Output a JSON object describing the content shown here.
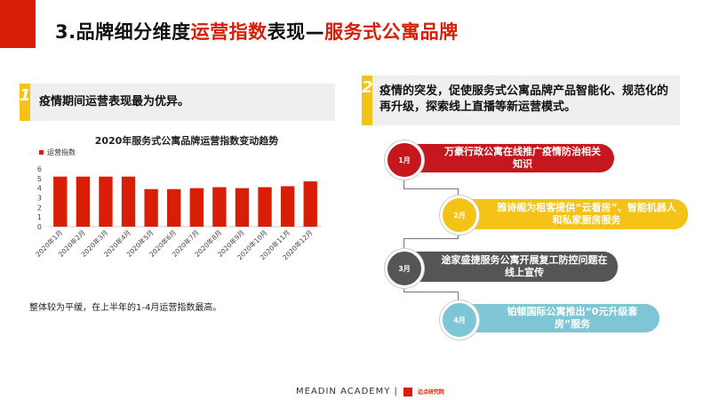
{
  "header": {
    "title_prefix": "3.品牌细分维度",
    "title_highlight1": "运营指数",
    "title_mid": "表现—",
    "title_highlight2": "服务式公寓品牌"
  },
  "left_panel": {
    "number": "1",
    "heading": "疫情期间运营表现最为优异。",
    "note": "整体较为平缓，在上半年的1-4月运营指数最高。"
  },
  "right_panel": {
    "number": "2",
    "heading": "疫情的突发，促使服务式公寓品牌产品智能化、规范化的再升级，探索线上直播等新运营模式。",
    "timeline": [
      {
        "month": "1月",
        "text": "万豪行政公寓在线推广疫情防治相关知识"
      },
      {
        "month": "2月",
        "text": "雅诗阁为租客提供“云看房”、智能机器人和私家厨房服务"
      },
      {
        "month": "3月",
        "text": "途家盛捷服务公寓开展复工防控问题在线上宣传"
      },
      {
        "month": "4月",
        "text": "铂顿国际公寓推出“0元升级套房”服务"
      }
    ]
  },
  "footer": {
    "brand": "MEADIN ACADEMY |",
    "logo_text": "迈点研究院"
  },
  "colors": {
    "accent": "#d81e06",
    "yellow": "#f5c217",
    "gray": "#555555",
    "blue": "#7ec6d6"
  },
  "chart_data": {
    "type": "bar",
    "title": "2020年服务式公寓品牌运营指数变动趋势",
    "legend": "运营指数",
    "categories": [
      "2020年1月",
      "2020年2月",
      "2020年3月",
      "2020年4月",
      "2020年5月",
      "2020年6月",
      "2020年7月",
      "2020年8月",
      "2020年9月",
      "2020年10月",
      "2020年11月",
      "2020年12月"
    ],
    "series": [
      {
        "name": "运营指数",
        "values": [
          5.2,
          5.2,
          5.2,
          5.2,
          3.9,
          3.9,
          4.0,
          4.1,
          4.0,
          4.1,
          4.2,
          4.7
        ]
      }
    ],
    "ylim": [
      0,
      6
    ],
    "yticks": [
      0,
      1,
      2,
      3,
      4,
      5,
      6
    ],
    "grid": false,
    "legend_position": "top-left"
  }
}
